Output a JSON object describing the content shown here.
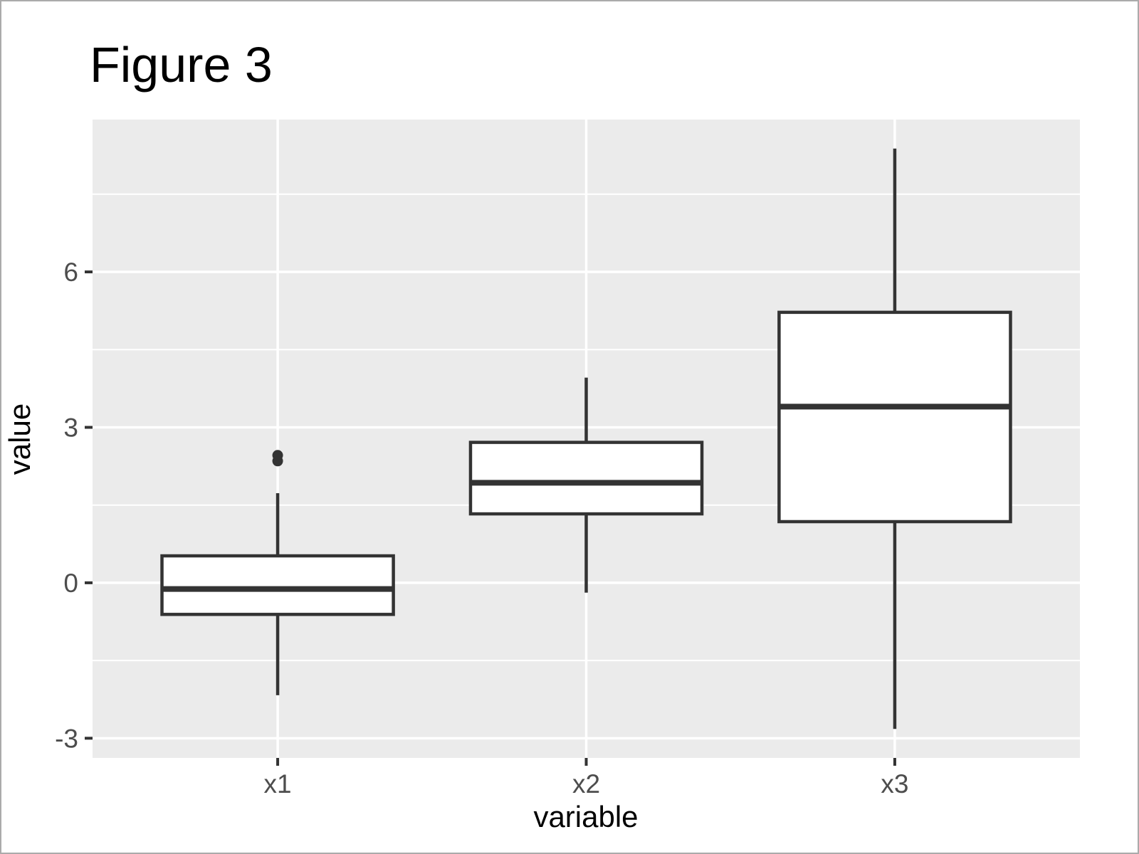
{
  "figure": {
    "title": "Figure 3"
  },
  "chart_data": {
    "type": "boxplot",
    "title": "Figure 3",
    "xlabel": "variable",
    "ylabel": "value",
    "categories": [
      "x1",
      "x2",
      "x3"
    ],
    "series": [
      {
        "name": "x1",
        "lower_whisker": -2.17,
        "q1": -0.61,
        "median": -0.12,
        "q3": 0.52,
        "upper_whisker": 1.73,
        "outliers": [
          2.35,
          2.46
        ]
      },
      {
        "name": "x2",
        "lower_whisker": -0.19,
        "q1": 1.33,
        "median": 1.93,
        "q3": 2.71,
        "upper_whisker": 3.96,
        "outliers": []
      },
      {
        "name": "x3",
        "lower_whisker": -2.82,
        "q1": 1.18,
        "median": 3.4,
        "q3": 5.22,
        "upper_whisker": 8.38,
        "outliers": []
      }
    ],
    "ylim": [
      -3.38,
      8.94
    ],
    "y_major_ticks": [
      -3,
      0,
      3,
      6
    ],
    "y_minor_gridlines": [
      -1.5,
      1.5,
      4.5,
      7.5
    ],
    "x_range": [
      0.4,
      3.6
    ],
    "box_width": 0.75,
    "grid": "on",
    "legend": "none",
    "colors": {
      "panel_bg": "#EBEBEB",
      "gridline": "#FFFFFF",
      "box_border": "#333333",
      "box_fill": "#FFFFFF",
      "outlier": "#333333",
      "tick_mark": "#333333",
      "tick_label": "#4D4D4D",
      "text": "#000000",
      "frame_border": "#ABABAB"
    }
  }
}
